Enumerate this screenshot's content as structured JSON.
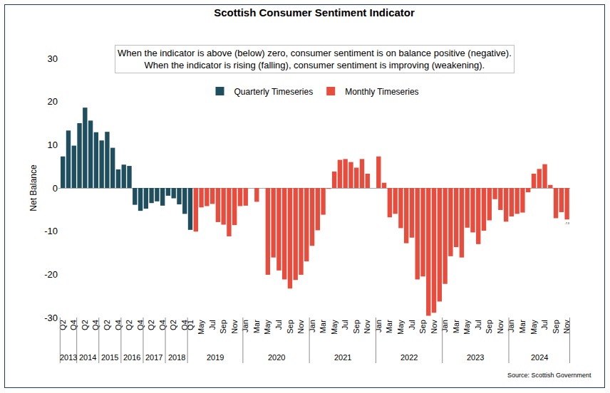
{
  "chart_data": {
    "type": "bar",
    "title": "Scottish Consumer Sentiment Indicator",
    "note": [
      "When the indicator is above (below) zero, consumer sentiment is on balance positive (negative).",
      "When the indicator is rising (falling), consumer sentiment is improving (weakening)."
    ],
    "y_label": "Net Balance",
    "source": "Source: Scottish Government",
    "ylim": [
      -30,
      30
    ],
    "yticks": [
      -30,
      -20,
      -10,
      0,
      10,
      20,
      30
    ],
    "grid": false,
    "legend": "top",
    "categories": [
      "Q2",
      null,
      "Q4",
      null,
      "Q2",
      null,
      "Q4",
      null,
      "Q2",
      null,
      "Q4",
      null,
      "Q2",
      null,
      "Q4",
      null,
      "Q2",
      null,
      "Q4",
      null,
      "Q2",
      null,
      "Q4",
      "Q1",
      null,
      "May",
      null,
      "Jul",
      null,
      "Sep",
      null,
      "Nov",
      null,
      "Jan",
      null,
      "Mar",
      null,
      "May",
      null,
      "Jul",
      null,
      "Sep",
      null,
      "Nov",
      null,
      "Jan",
      null,
      "Mar",
      null,
      "May",
      null,
      "Jul",
      null,
      "Sep",
      null,
      "Nov",
      null,
      "Jan",
      null,
      "Mar",
      null,
      "May",
      null,
      "Jul",
      null,
      "Sep",
      null,
      "Nov",
      null,
      "Jan",
      null,
      "Mar",
      null,
      "May",
      null,
      "Jul",
      null,
      "Sep",
      null,
      "Nov",
      null,
      "Jan",
      null,
      "Mar",
      null,
      "May",
      null,
      "Jul",
      null,
      "Sep",
      null,
      "Nov"
    ],
    "years": [
      "2013",
      "2013",
      "2013",
      "2014",
      "2014",
      "2014",
      "2014",
      "2015",
      "2015",
      "2015",
      "2015",
      "2016",
      "2016",
      "2016",
      "2016",
      "2017",
      "2017",
      "2017",
      "2017",
      "2018",
      "2018",
      "2018",
      "2018",
      "2019",
      "2019",
      "2019",
      "2019",
      "2019",
      "2019",
      "2019",
      "2019",
      "2019",
      "2019",
      "2020",
      "2020",
      "2020",
      "2020",
      "2020",
      "2020",
      "2020",
      "2020",
      "2020",
      "2020",
      "2020",
      "2020",
      "2021",
      "2021",
      "2021",
      "2021",
      "2021",
      "2021",
      "2021",
      "2021",
      "2021",
      "2021",
      "2021",
      "2021",
      "2022",
      "2022",
      "2022",
      "2022",
      "2022",
      "2022",
      "2022",
      "2022",
      "2022",
      "2022",
      "2022",
      "2022",
      "2023",
      "2023",
      "2023",
      "2023",
      "2023",
      "2023",
      "2023",
      "2023",
      "2023",
      "2023",
      "2023",
      "2023",
      "2024",
      "2024",
      "2024",
      "2024",
      "2024",
      "2024",
      "2024",
      "2024",
      "2024",
      "2024",
      "2024"
    ],
    "series": [
      {
        "name": "Quarterly Timeseries",
        "color": "#1f4e5f",
        "values": [
          7.3,
          13.3,
          9.8,
          15.0,
          18.6,
          15.6,
          12.9,
          11.0,
          13.0,
          9.3,
          4.3,
          5.4,
          5.1,
          -3.9,
          -5.3,
          -4.8,
          -3.5,
          -3.1,
          -4.1,
          -1.8,
          -2.4,
          -3.8,
          -6.0,
          -9.7,
          null,
          null,
          null,
          null,
          null,
          null,
          null,
          null,
          null,
          null,
          null,
          null,
          null,
          null,
          null,
          null,
          null,
          null,
          null,
          null,
          null,
          null,
          null,
          null,
          null,
          null,
          null,
          null,
          null,
          null,
          null,
          null,
          null,
          null,
          null,
          null,
          null,
          null,
          null,
          null,
          null,
          null,
          null,
          null,
          null,
          null,
          null,
          null,
          null,
          null,
          null,
          null,
          null,
          null,
          null,
          null,
          null,
          null,
          null,
          null,
          null,
          null,
          null,
          null,
          null,
          null,
          null,
          null
        ]
      },
      {
        "name": "Monthly Timeseries",
        "color": "#e84c3d",
        "values": [
          null,
          null,
          null,
          null,
          null,
          null,
          null,
          null,
          null,
          null,
          null,
          null,
          null,
          null,
          null,
          null,
          null,
          null,
          null,
          null,
          null,
          null,
          null,
          null,
          -10.1,
          -4.5,
          -4.2,
          -3.7,
          -7.9,
          -8.5,
          -11.2,
          -8.6,
          -4.2,
          -4.1,
          null,
          -3.2,
          null,
          -20.1,
          -16.1,
          -19.1,
          -21.2,
          -23.3,
          -21.3,
          -20.1,
          -17.0,
          -13.4,
          -9.8,
          -6.2,
          -0.2,
          3.8,
          6.5,
          6.7,
          6.0,
          4.7,
          6.7,
          3.3,
          null,
          7.3,
          1.2,
          -6.8,
          -6.0,
          -9.3,
          -12.8,
          -11.5,
          -21.2,
          -20.5,
          -29.6,
          -28.9,
          -26.3,
          -22.2,
          -15.8,
          -13.7,
          -16.1,
          -9.2,
          -10.3,
          -13.0,
          -9.9,
          -7.5,
          -2.6,
          -5.1,
          -7.8,
          -6.6,
          -6.0,
          -5.7,
          -1.0,
          3.3,
          4.4,
          5.5,
          0.7,
          -7.0,
          -5.6,
          -7.3
        ],
        "value_labels": [
          null,
          null,
          null,
          null,
          null,
          null,
          null,
          null,
          null,
          null,
          null,
          null,
          null,
          null,
          null,
          null,
          null,
          null,
          null,
          null,
          null,
          null,
          null,
          null,
          null,
          null,
          null,
          null,
          null,
          null,
          null,
          null,
          null,
          null,
          null,
          null,
          null,
          null,
          null,
          null,
          null,
          null,
          null,
          null,
          null,
          null,
          null,
          null,
          null,
          null,
          null,
          null,
          null,
          null,
          null,
          null,
          null,
          null,
          null,
          null,
          null,
          null,
          null,
          null,
          null,
          null,
          null,
          null,
          null,
          null,
          null,
          null,
          null,
          null,
          null,
          null,
          null,
          null,
          null,
          null,
          null,
          null,
          null,
          null,
          null,
          null,
          null,
          null,
          null,
          null,
          null,
          "-7.3"
        ]
      }
    ]
  }
}
